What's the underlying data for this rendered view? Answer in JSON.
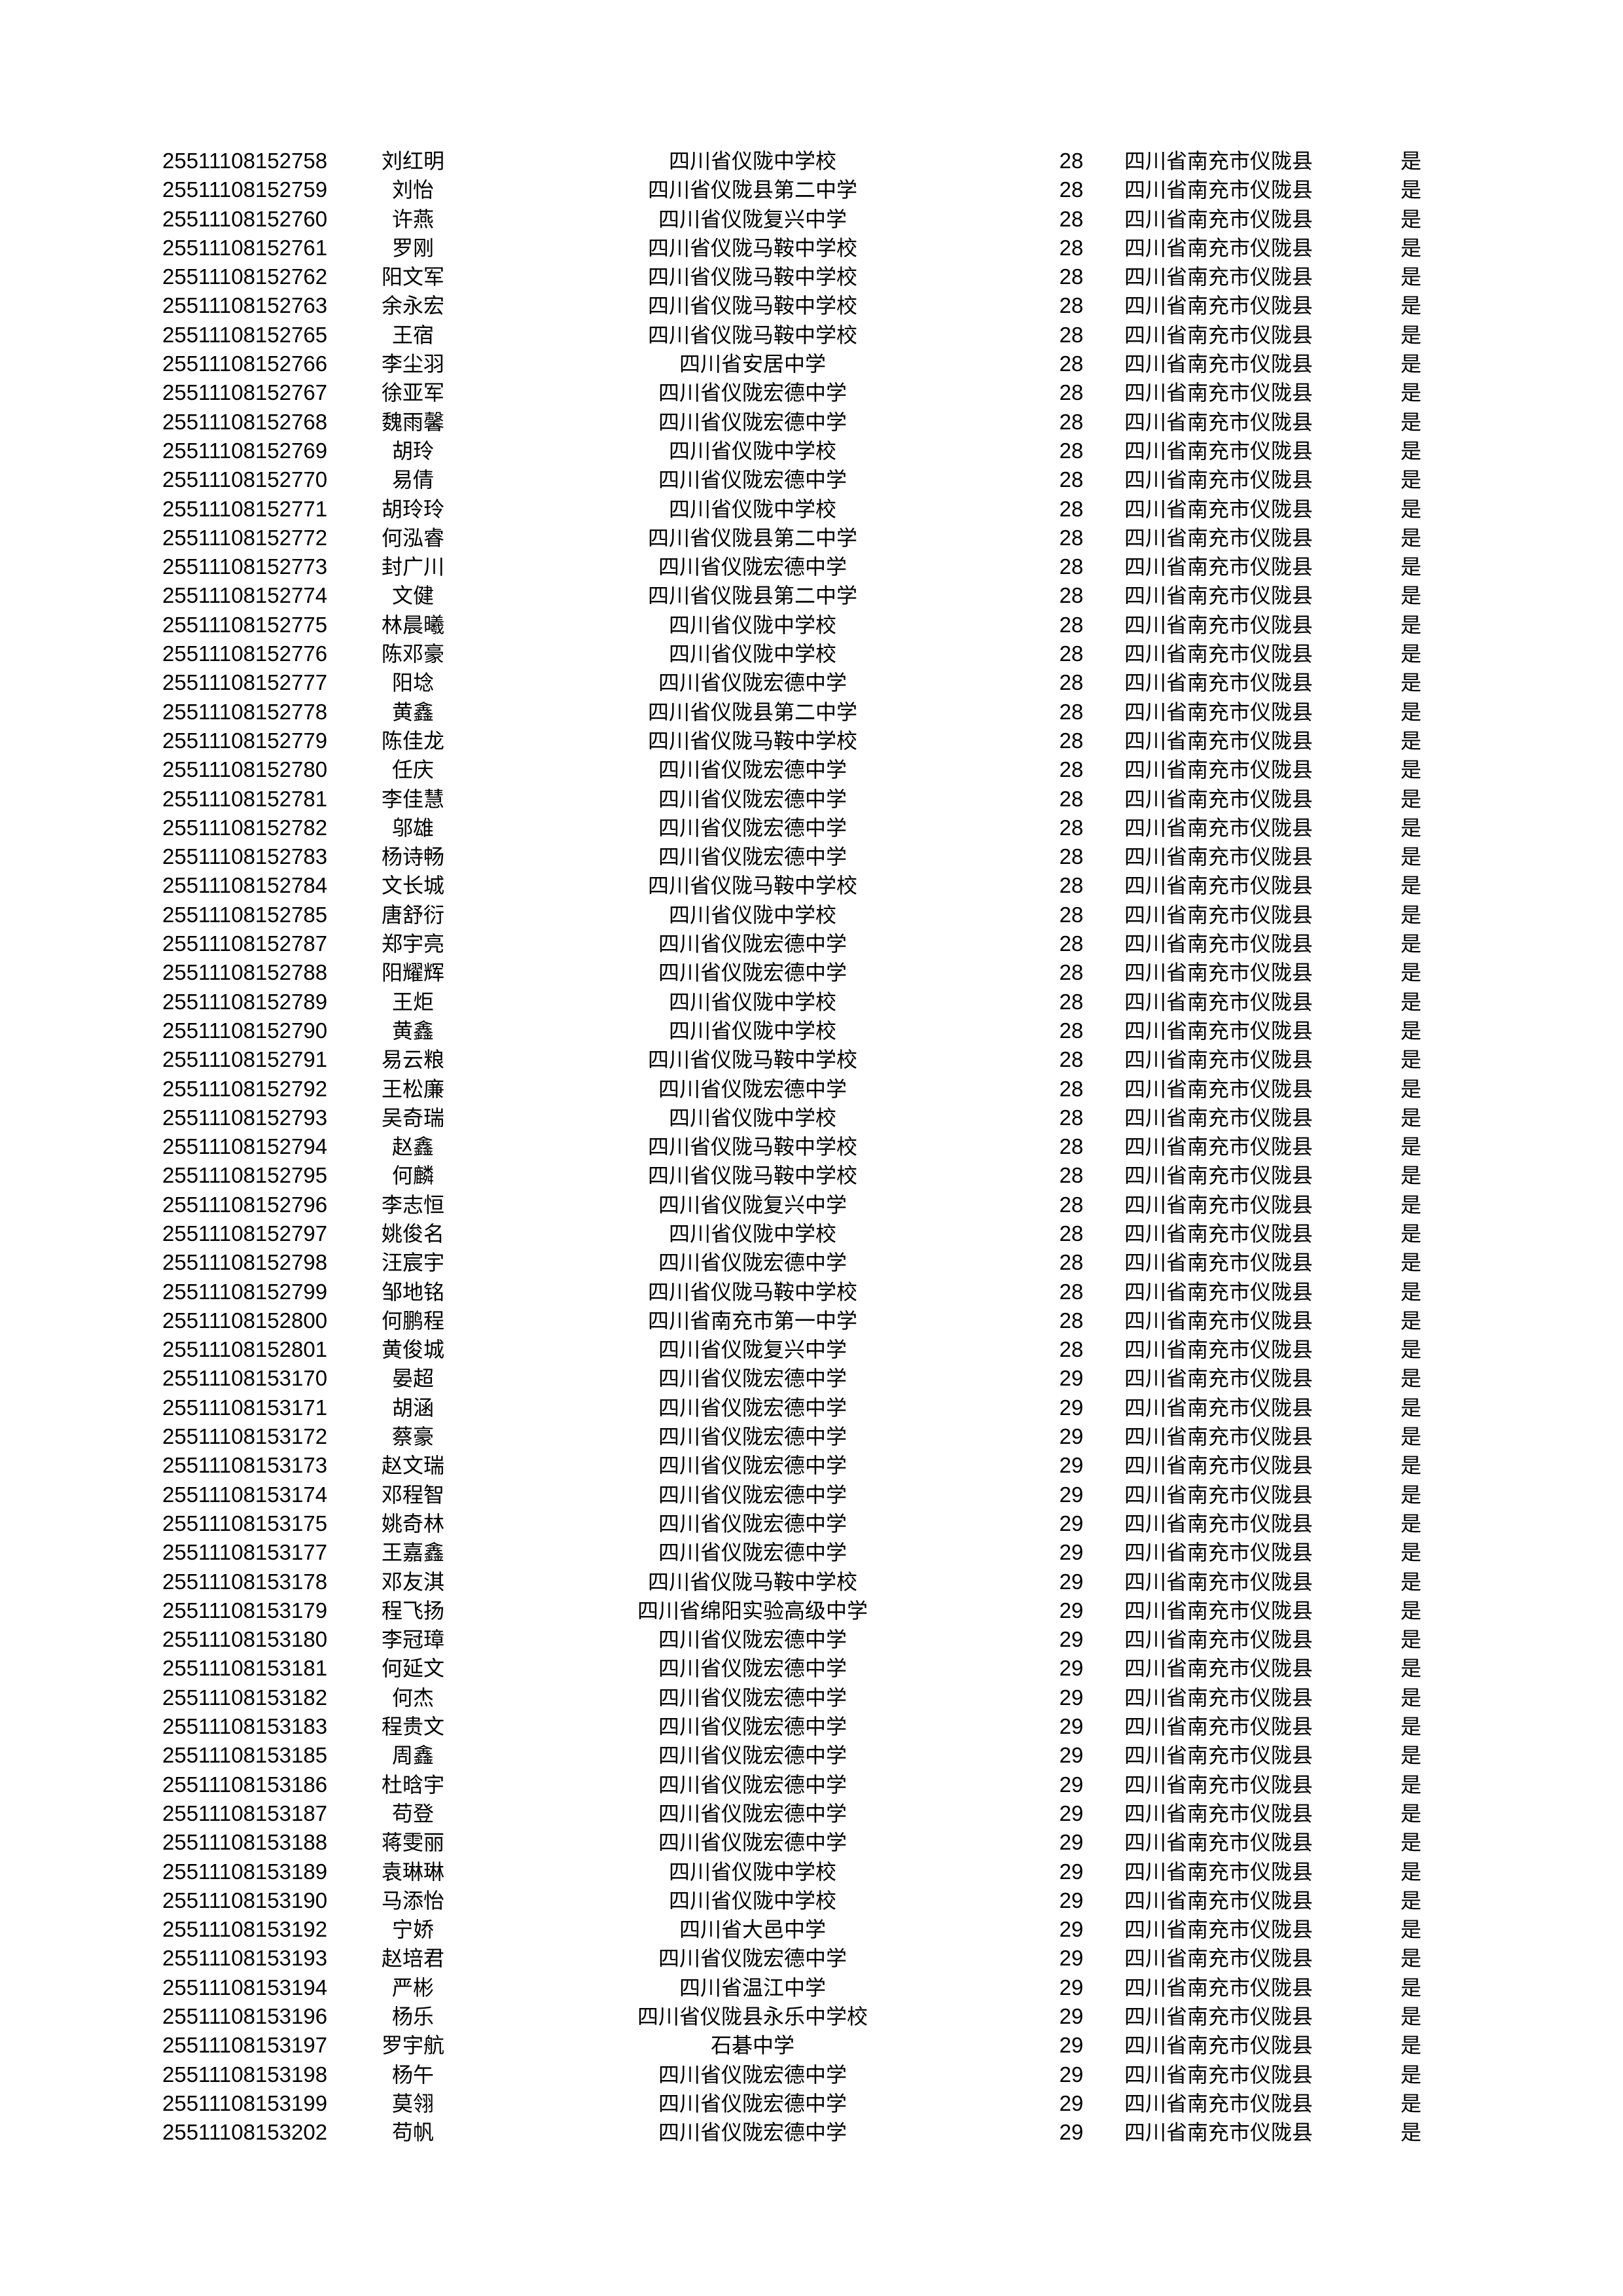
{
  "rows": [
    [
      "25511108152758",
      "刘红明",
      "四川省仪陇中学校",
      "28",
      "四川省南充市仪陇县",
      "是"
    ],
    [
      "25511108152759",
      "刘怡",
      "四川省仪陇县第二中学",
      "28",
      "四川省南充市仪陇县",
      "是"
    ],
    [
      "25511108152760",
      "许燕",
      "四川省仪陇复兴中学",
      "28",
      "四川省南充市仪陇县",
      "是"
    ],
    [
      "25511108152761",
      "罗刚",
      "四川省仪陇马鞍中学校",
      "28",
      "四川省南充市仪陇县",
      "是"
    ],
    [
      "25511108152762",
      "阳文军",
      "四川省仪陇马鞍中学校",
      "28",
      "四川省南充市仪陇县",
      "是"
    ],
    [
      "25511108152763",
      "余永宏",
      "四川省仪陇马鞍中学校",
      "28",
      "四川省南充市仪陇县",
      "是"
    ],
    [
      "25511108152765",
      "王宿",
      "四川省仪陇马鞍中学校",
      "28",
      "四川省南充市仪陇县",
      "是"
    ],
    [
      "25511108152766",
      "李尘羽",
      "四川省安居中学",
      "28",
      "四川省南充市仪陇县",
      "是"
    ],
    [
      "25511108152767",
      "徐亚军",
      "四川省仪陇宏德中学",
      "28",
      "四川省南充市仪陇县",
      "是"
    ],
    [
      "25511108152768",
      "魏雨馨",
      "四川省仪陇宏德中学",
      "28",
      "四川省南充市仪陇县",
      "是"
    ],
    [
      "25511108152769",
      "胡玲",
      "四川省仪陇中学校",
      "28",
      "四川省南充市仪陇县",
      "是"
    ],
    [
      "25511108152770",
      "易倩",
      "四川省仪陇宏德中学",
      "28",
      "四川省南充市仪陇县",
      "是"
    ],
    [
      "25511108152771",
      "胡玲玲",
      "四川省仪陇中学校",
      "28",
      "四川省南充市仪陇县",
      "是"
    ],
    [
      "25511108152772",
      "何泓睿",
      "四川省仪陇县第二中学",
      "28",
      "四川省南充市仪陇县",
      "是"
    ],
    [
      "25511108152773",
      "封广川",
      "四川省仪陇宏德中学",
      "28",
      "四川省南充市仪陇县",
      "是"
    ],
    [
      "25511108152774",
      "文健",
      "四川省仪陇县第二中学",
      "28",
      "四川省南充市仪陇县",
      "是"
    ],
    [
      "25511108152775",
      "林晨曦",
      "四川省仪陇中学校",
      "28",
      "四川省南充市仪陇县",
      "是"
    ],
    [
      "25511108152776",
      "陈邓豪",
      "四川省仪陇中学校",
      "28",
      "四川省南充市仪陇县",
      "是"
    ],
    [
      "25511108152777",
      "阳埝",
      "四川省仪陇宏德中学",
      "28",
      "四川省南充市仪陇县",
      "是"
    ],
    [
      "25511108152778",
      "黄鑫",
      "四川省仪陇县第二中学",
      "28",
      "四川省南充市仪陇县",
      "是"
    ],
    [
      "25511108152779",
      "陈佳龙",
      "四川省仪陇马鞍中学校",
      "28",
      "四川省南充市仪陇县",
      "是"
    ],
    [
      "25511108152780",
      "任庆",
      "四川省仪陇宏德中学",
      "28",
      "四川省南充市仪陇县",
      "是"
    ],
    [
      "25511108152781",
      "李佳慧",
      "四川省仪陇宏德中学",
      "28",
      "四川省南充市仪陇县",
      "是"
    ],
    [
      "25511108152782",
      "邬雄",
      "四川省仪陇宏德中学",
      "28",
      "四川省南充市仪陇县",
      "是"
    ],
    [
      "25511108152783",
      "杨诗畅",
      "四川省仪陇宏德中学",
      "28",
      "四川省南充市仪陇县",
      "是"
    ],
    [
      "25511108152784",
      "文长城",
      "四川省仪陇马鞍中学校",
      "28",
      "四川省南充市仪陇县",
      "是"
    ],
    [
      "25511108152785",
      "唐舒衍",
      "四川省仪陇中学校",
      "28",
      "四川省南充市仪陇县",
      "是"
    ],
    [
      "25511108152787",
      "郑宇亮",
      "四川省仪陇宏德中学",
      "28",
      "四川省南充市仪陇县",
      "是"
    ],
    [
      "25511108152788",
      "阳耀辉",
      "四川省仪陇宏德中学",
      "28",
      "四川省南充市仪陇县",
      "是"
    ],
    [
      "25511108152789",
      "王炬",
      "四川省仪陇中学校",
      "28",
      "四川省南充市仪陇县",
      "是"
    ],
    [
      "25511108152790",
      "黄鑫",
      "四川省仪陇中学校",
      "28",
      "四川省南充市仪陇县",
      "是"
    ],
    [
      "25511108152791",
      "易云粮",
      "四川省仪陇马鞍中学校",
      "28",
      "四川省南充市仪陇县",
      "是"
    ],
    [
      "25511108152792",
      "王松廉",
      "四川省仪陇宏德中学",
      "28",
      "四川省南充市仪陇县",
      "是"
    ],
    [
      "25511108152793",
      "吴奇瑞",
      "四川省仪陇中学校",
      "28",
      "四川省南充市仪陇县",
      "是"
    ],
    [
      "25511108152794",
      "赵鑫",
      "四川省仪陇马鞍中学校",
      "28",
      "四川省南充市仪陇县",
      "是"
    ],
    [
      "25511108152795",
      "何麟",
      "四川省仪陇马鞍中学校",
      "28",
      "四川省南充市仪陇县",
      "是"
    ],
    [
      "25511108152796",
      "李志恒",
      "四川省仪陇复兴中学",
      "28",
      "四川省南充市仪陇县",
      "是"
    ],
    [
      "25511108152797",
      "姚俊名",
      "四川省仪陇中学校",
      "28",
      "四川省南充市仪陇县",
      "是"
    ],
    [
      "25511108152798",
      "汪宸宇",
      "四川省仪陇宏德中学",
      "28",
      "四川省南充市仪陇县",
      "是"
    ],
    [
      "25511108152799",
      "邹地铭",
      "四川省仪陇马鞍中学校",
      "28",
      "四川省南充市仪陇县",
      "是"
    ],
    [
      "25511108152800",
      "何鹏程",
      "四川省南充市第一中学",
      "28",
      "四川省南充市仪陇县",
      "是"
    ],
    [
      "25511108152801",
      "黄俊城",
      "四川省仪陇复兴中学",
      "28",
      "四川省南充市仪陇县",
      "是"
    ],
    [
      "25511108153170",
      "晏超",
      "四川省仪陇宏德中学",
      "29",
      "四川省南充市仪陇县",
      "是"
    ],
    [
      "25511108153171",
      "胡涵",
      "四川省仪陇宏德中学",
      "29",
      "四川省南充市仪陇县",
      "是"
    ],
    [
      "25511108153172",
      "蔡豪",
      "四川省仪陇宏德中学",
      "29",
      "四川省南充市仪陇县",
      "是"
    ],
    [
      "25511108153173",
      "赵文瑞",
      "四川省仪陇宏德中学",
      "29",
      "四川省南充市仪陇县",
      "是"
    ],
    [
      "25511108153174",
      "邓程智",
      "四川省仪陇宏德中学",
      "29",
      "四川省南充市仪陇县",
      "是"
    ],
    [
      "25511108153175",
      "姚奇林",
      "四川省仪陇宏德中学",
      "29",
      "四川省南充市仪陇县",
      "是"
    ],
    [
      "25511108153177",
      "王嘉鑫",
      "四川省仪陇宏德中学",
      "29",
      "四川省南充市仪陇县",
      "是"
    ],
    [
      "25511108153178",
      "邓友淇",
      "四川省仪陇马鞍中学校",
      "29",
      "四川省南充市仪陇县",
      "是"
    ],
    [
      "25511108153179",
      "程飞扬",
      "四川省绵阳实验高级中学",
      "29",
      "四川省南充市仪陇县",
      "是"
    ],
    [
      "25511108153180",
      "李冠璋",
      "四川省仪陇宏德中学",
      "29",
      "四川省南充市仪陇县",
      "是"
    ],
    [
      "25511108153181",
      "何延文",
      "四川省仪陇宏德中学",
      "29",
      "四川省南充市仪陇县",
      "是"
    ],
    [
      "25511108153182",
      "何杰",
      "四川省仪陇宏德中学",
      "29",
      "四川省南充市仪陇县",
      "是"
    ],
    [
      "25511108153183",
      "程贵文",
      "四川省仪陇宏德中学",
      "29",
      "四川省南充市仪陇县",
      "是"
    ],
    [
      "25511108153185",
      "周鑫",
      "四川省仪陇宏德中学",
      "29",
      "四川省南充市仪陇县",
      "是"
    ],
    [
      "25511108153186",
      "杜晗宇",
      "四川省仪陇宏德中学",
      "29",
      "四川省南充市仪陇县",
      "是"
    ],
    [
      "25511108153187",
      "苟登",
      "四川省仪陇宏德中学",
      "29",
      "四川省南充市仪陇县",
      "是"
    ],
    [
      "25511108153188",
      "蒋雯丽",
      "四川省仪陇宏德中学",
      "29",
      "四川省南充市仪陇县",
      "是"
    ],
    [
      "25511108153189",
      "袁琳琳",
      "四川省仪陇中学校",
      "29",
      "四川省南充市仪陇县",
      "是"
    ],
    [
      "25511108153190",
      "马添怡",
      "四川省仪陇中学校",
      "29",
      "四川省南充市仪陇县",
      "是"
    ],
    [
      "25511108153192",
      "宁娇",
      "四川省大邑中学",
      "29",
      "四川省南充市仪陇县",
      "是"
    ],
    [
      "25511108153193",
      "赵培君",
      "四川省仪陇宏德中学",
      "29",
      "四川省南充市仪陇县",
      "是"
    ],
    [
      "25511108153194",
      "严彬",
      "四川省温江中学",
      "29",
      "四川省南充市仪陇县",
      "是"
    ],
    [
      "25511108153196",
      "杨乐",
      "四川省仪陇县永乐中学校",
      "29",
      "四川省南充市仪陇县",
      "是"
    ],
    [
      "25511108153197",
      "罗宇航",
      "石碁中学",
      "29",
      "四川省南充市仪陇县",
      "是"
    ],
    [
      "25511108153198",
      "杨午",
      "四川省仪陇宏德中学",
      "29",
      "四川省南充市仪陇县",
      "是"
    ],
    [
      "25511108153199",
      "莫翎",
      "四川省仪陇宏德中学",
      "29",
      "四川省南充市仪陇县",
      "是"
    ],
    [
      "25511108153202",
      "苟帆",
      "四川省仪陇宏德中学",
      "29",
      "四川省南充市仪陇县",
      "是"
    ]
  ]
}
